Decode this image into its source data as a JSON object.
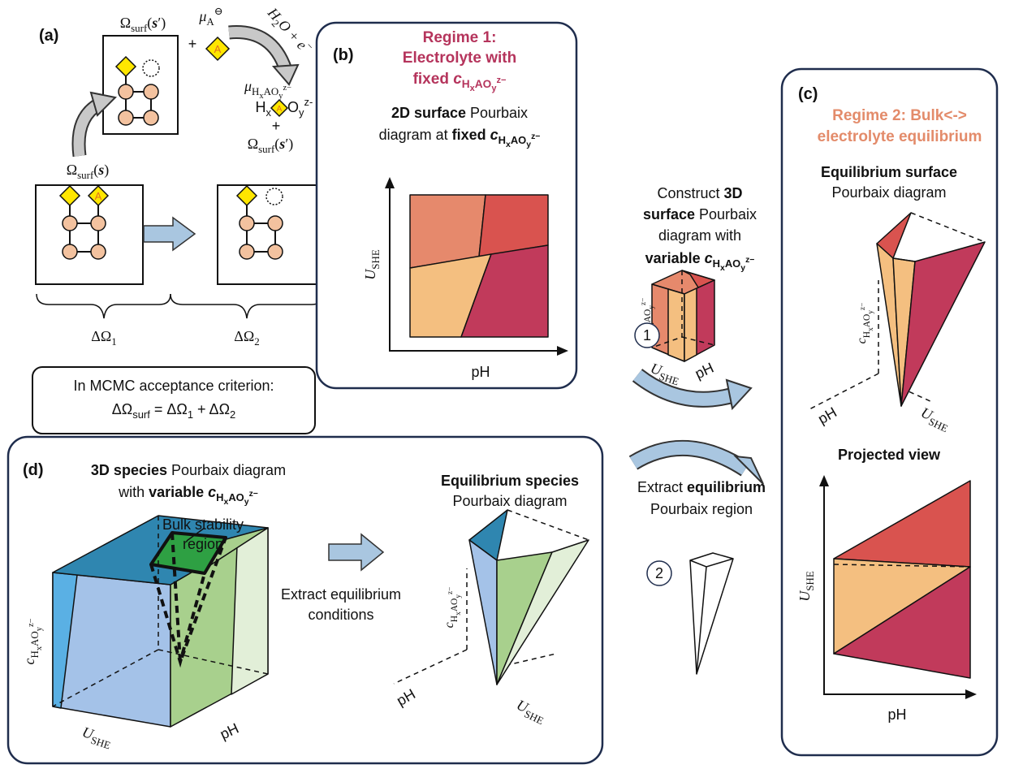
{
  "a": {
    "label": "(a)",
    "omega_top": [
      "Ω",
      "surf",
      "(",
      "s",
      "′)"
    ],
    "plus": "+",
    "mu_a": [
      "μ",
      "A",
      "⊖"
    ],
    "reaction": [
      "H",
      "2",
      "O + e",
      "−"
    ],
    "mu_h": [
      "μ",
      "H",
      "x",
      "AO",
      "y",
      "z−"
    ],
    "species_h": [
      "H",
      "x"
    ],
    "species_o": [
      "O",
      "y",
      "z-"
    ],
    "atom": "A",
    "omega_left": [
      "Ω",
      "surf",
      "(",
      "s",
      ")"
    ],
    "omega_right": [
      "Ω",
      "surf",
      "(",
      "s",
      "′)"
    ],
    "delta_1": [
      "ΔΩ",
      "1"
    ],
    "delta_2": [
      "ΔΩ",
      "2"
    ],
    "criterion_1": "In MCMC acceptance criterion:",
    "criterion_2": [
      "ΔΩ",
      "surf",
      " = ΔΩ",
      "1",
      " + ΔΩ",
      "2"
    ]
  },
  "b": {
    "label": "(b)",
    "title_1": "Regime 1:",
    "title_2": "Electrolyte with",
    "title_3": [
      "fixed ",
      "c",
      "H",
      "x",
      "AO",
      "y",
      "z−"
    ],
    "text_1": [
      "2D surface",
      " Pourbaix"
    ],
    "text_2": [
      "diagram at ",
      "fixed ",
      "c",
      "H",
      "x",
      "AO",
      "y",
      "z−"
    ],
    "y_axis": [
      "U",
      "SHE"
    ],
    "x_axis": "pH"
  },
  "construct": {
    "line_1": [
      "Construct ",
      "3D"
    ],
    "line_2": [
      "surface",
      " Pourbaix"
    ],
    "line_3": "diagram with",
    "line_4": [
      "variable ",
      "c",
      "H",
      "x",
      "AO",
      "y",
      "z−"
    ],
    "step": "1",
    "cube_c": [
      "c",
      "H",
      "x",
      "AO",
      "y",
      "z−"
    ],
    "cube_u": [
      "U",
      "SHE"
    ],
    "cube_ph": "pH"
  },
  "extract": {
    "line_1": [
      "Extract ",
      "equilibrium"
    ],
    "line_2": "Pourbaix region",
    "step": "2"
  },
  "c": {
    "label": "(c)",
    "title_1": "Regime 2: Bulk<->",
    "title_2": "electrolyte equilibrium",
    "heading_1": "Equilibrium surface",
    "heading_2": "Pourbaix diagram",
    "axis_c": [
      "c",
      "H",
      "x",
      "AO",
      "y",
      "z−"
    ],
    "axis_ph": "pH",
    "axis_u": [
      "U",
      "SHE"
    ],
    "projected": "Projected view",
    "proj_y": [
      "U",
      "SHE"
    ],
    "proj_x": "pH"
  },
  "d": {
    "label": "(d)",
    "text_1": [
      "3D species",
      " Pourbaix diagram"
    ],
    "text_2": [
      "with ",
      "variable ",
      "c",
      "H",
      "x",
      "AO",
      "y",
      "z−"
    ],
    "bulk_1": "Bulk stability",
    "bulk_2": "region",
    "axis_c": [
      "c",
      "H",
      "x",
      "AO",
      "y",
      "z−"
    ],
    "axis_u": [
      "U",
      "SHE"
    ],
    "axis_ph": "pH",
    "extract_1": "Extract equilibrium",
    "extract_2": "conditions",
    "heading_1": "Equilibrium species",
    "heading_2": "Pourbaix diagram",
    "cone_c": [
      "c",
      "H",
      "x",
      "AO",
      "y",
      "z−"
    ],
    "cone_ph": "pH",
    "cone_u": [
      "U",
      "SHE"
    ]
  }
}
